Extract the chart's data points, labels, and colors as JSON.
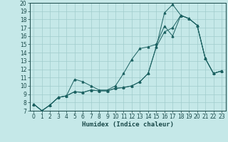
{
  "xlabel": "Humidex (Indice chaleur)",
  "bg_color": "#c5e8e8",
  "grid_color": "#a0cccc",
  "line_color": "#1a6060",
  "xlim": [
    -0.5,
    23.5
  ],
  "ylim": [
    7,
    20
  ],
  "xticks": [
    0,
    1,
    2,
    3,
    4,
    5,
    6,
    7,
    8,
    9,
    10,
    11,
    12,
    13,
    14,
    15,
    16,
    17,
    18,
    19,
    20,
    21,
    22,
    23
  ],
  "yticks": [
    7,
    8,
    9,
    10,
    11,
    12,
    13,
    14,
    15,
    16,
    17,
    18,
    19,
    20
  ],
  "line1_x": [
    0,
    1,
    2,
    3,
    4,
    5,
    6,
    7,
    8,
    9,
    10,
    11,
    12,
    13,
    14,
    15,
    16,
    17,
    18,
    19,
    20,
    21,
    22,
    23
  ],
  "line1_y": [
    7.8,
    7.0,
    7.7,
    8.6,
    8.8,
    10.8,
    10.5,
    10.0,
    9.5,
    9.5,
    10.0,
    11.5,
    13.2,
    14.5,
    14.7,
    15.0,
    17.2,
    16.0,
    18.5,
    18.1,
    17.3,
    13.3,
    11.5,
    11.8
  ],
  "line2_x": [
    0,
    1,
    2,
    3,
    4,
    5,
    6,
    7,
    8,
    9,
    10,
    11,
    12,
    13,
    14,
    15,
    16,
    17,
    18,
    19,
    20,
    21,
    22,
    23
  ],
  "line2_y": [
    7.8,
    7.0,
    7.7,
    8.6,
    8.8,
    9.3,
    9.2,
    9.5,
    9.4,
    9.4,
    9.7,
    9.8,
    10.0,
    10.5,
    11.5,
    14.7,
    18.8,
    19.8,
    18.5,
    18.1,
    17.3,
    13.3,
    11.5,
    11.8
  ],
  "line3_x": [
    0,
    1,
    2,
    3,
    4,
    5,
    6,
    7,
    8,
    9,
    10,
    11,
    12,
    13,
    14,
    15,
    16,
    17,
    18,
    19,
    20,
    21,
    22,
    23
  ],
  "line3_y": [
    7.8,
    7.0,
    7.7,
    8.6,
    8.8,
    9.3,
    9.2,
    9.5,
    9.4,
    9.4,
    9.7,
    9.8,
    10.0,
    10.5,
    11.5,
    14.7,
    16.5,
    17.0,
    18.5,
    18.1,
    17.3,
    13.3,
    11.5,
    11.8
  ],
  "xlabel_fontsize": 6.5,
  "tick_fontsize": 5.5
}
